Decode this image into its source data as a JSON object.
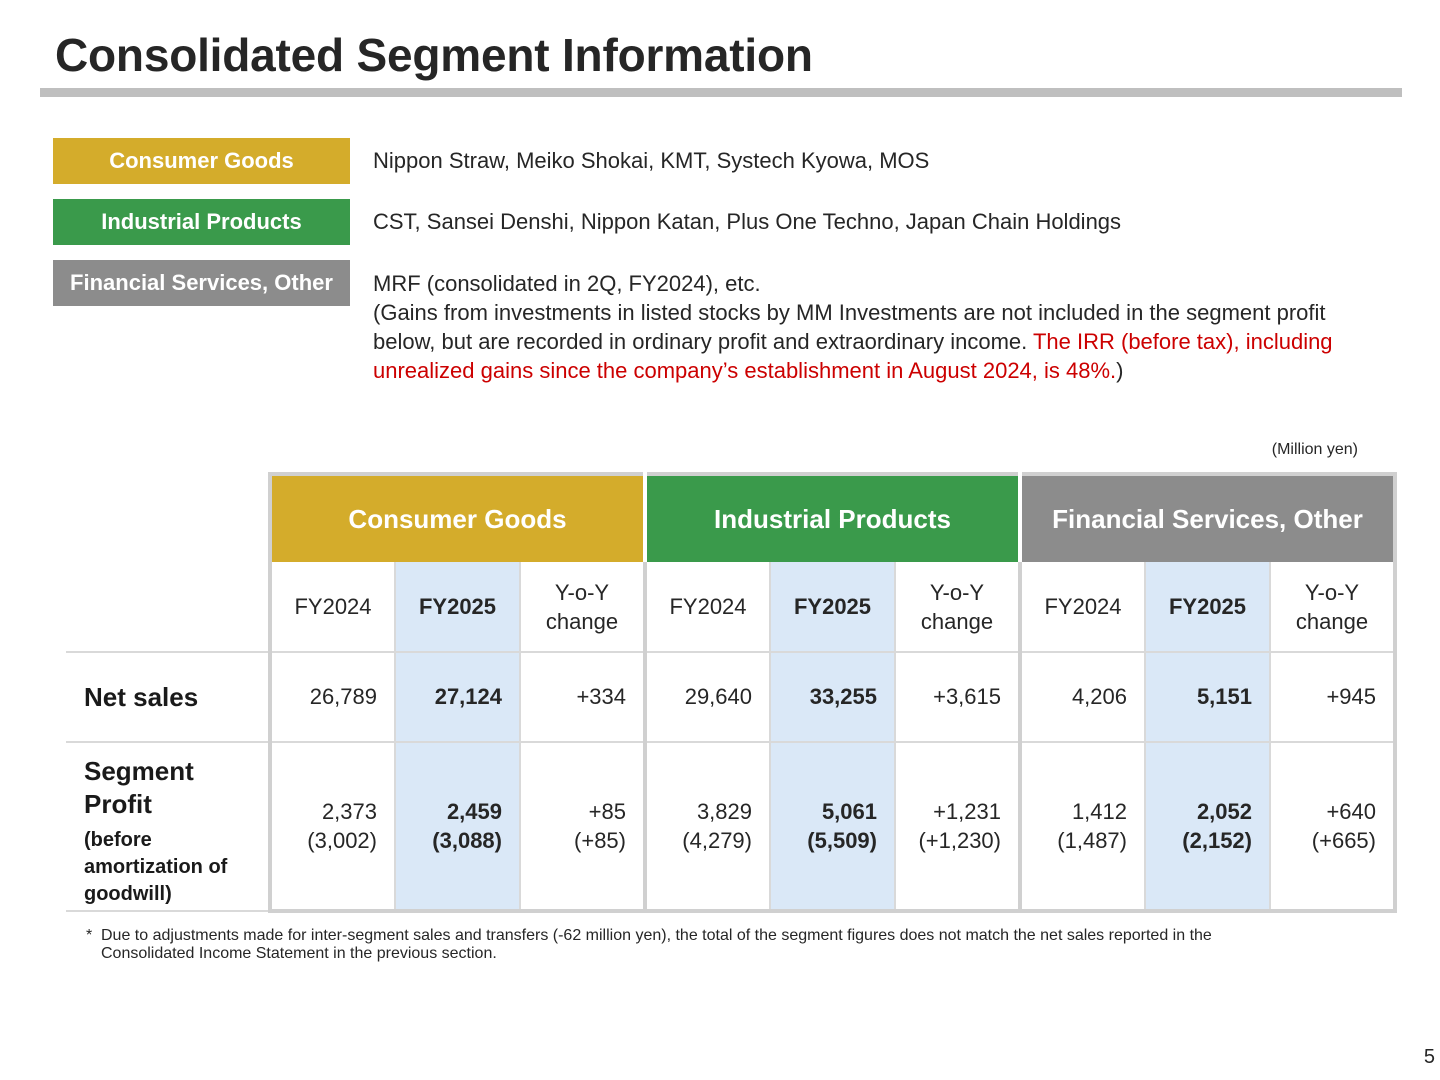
{
  "title": "Consolidated Segment Information",
  "colors": {
    "consumer_goods": "#d4ac2b",
    "industrial_products": "#3a9a4b",
    "financial_services": "#8c8c8c",
    "highlight": "#dae8f7",
    "red_text": "#cc0000"
  },
  "segments": [
    {
      "label": "Consumer Goods",
      "description": "Nippon Straw, Meiko Shokai, KMT, Systech Kyowa, MOS"
    },
    {
      "label": "Industrial Products",
      "description": "CST, Sansei Denshi, Nippon Katan, Plus One Techno, Japan Chain Holdings"
    },
    {
      "label": "Financial Services, Other",
      "description_line1": "MRF (consolidated in 2Q, FY2024), etc.",
      "description_note": "(Gains from investments in listed stocks by MM Investments are not included in the segment profit below, but are recorded in ordinary profit and extraordinary income. ",
      "description_red": "The IRR (before tax), including unrealized gains since the company’s establishment in August 2024, is 48%.",
      "description_close": ")"
    }
  ],
  "unit": "(Million yen)",
  "table": {
    "groups": [
      "Consumer Goods",
      "Industrial Products",
      "Financial Services, Other"
    ],
    "subheaders": {
      "fy2024": "FY2024",
      "fy2025": "FY2025",
      "yoy": "Y-o-Y change"
    },
    "rows": {
      "net_sales": {
        "label": "Net sales",
        "values": [
          "26,789",
          "27,124",
          "+334",
          "29,640",
          "33,255",
          "+3,615",
          "4,206",
          "5,151",
          "+945"
        ]
      },
      "segment_profit": {
        "label": "Segment Profit",
        "sublabel": "(before amortization of goodwill)",
        "values": [
          "2,373",
          "2,459",
          "+85",
          "3,829",
          "5,061",
          "+1,231",
          "1,412",
          "2,052",
          "+640"
        ],
        "values_before_amortization": [
          "(3,002)",
          "(3,088)",
          "(+85)",
          "(4,279)",
          "(5,509)",
          "(+1,230)",
          "(1,487)",
          "(2,152)",
          "(+665)"
        ]
      }
    }
  },
  "footnote": {
    "mark": "*",
    "text": "Due to adjustments made for inter-segment sales and transfers (-62 million yen), the total of the segment figures does not match the net sales reported in the Consolidated Income Statement in the previous section."
  },
  "page_number": "5"
}
